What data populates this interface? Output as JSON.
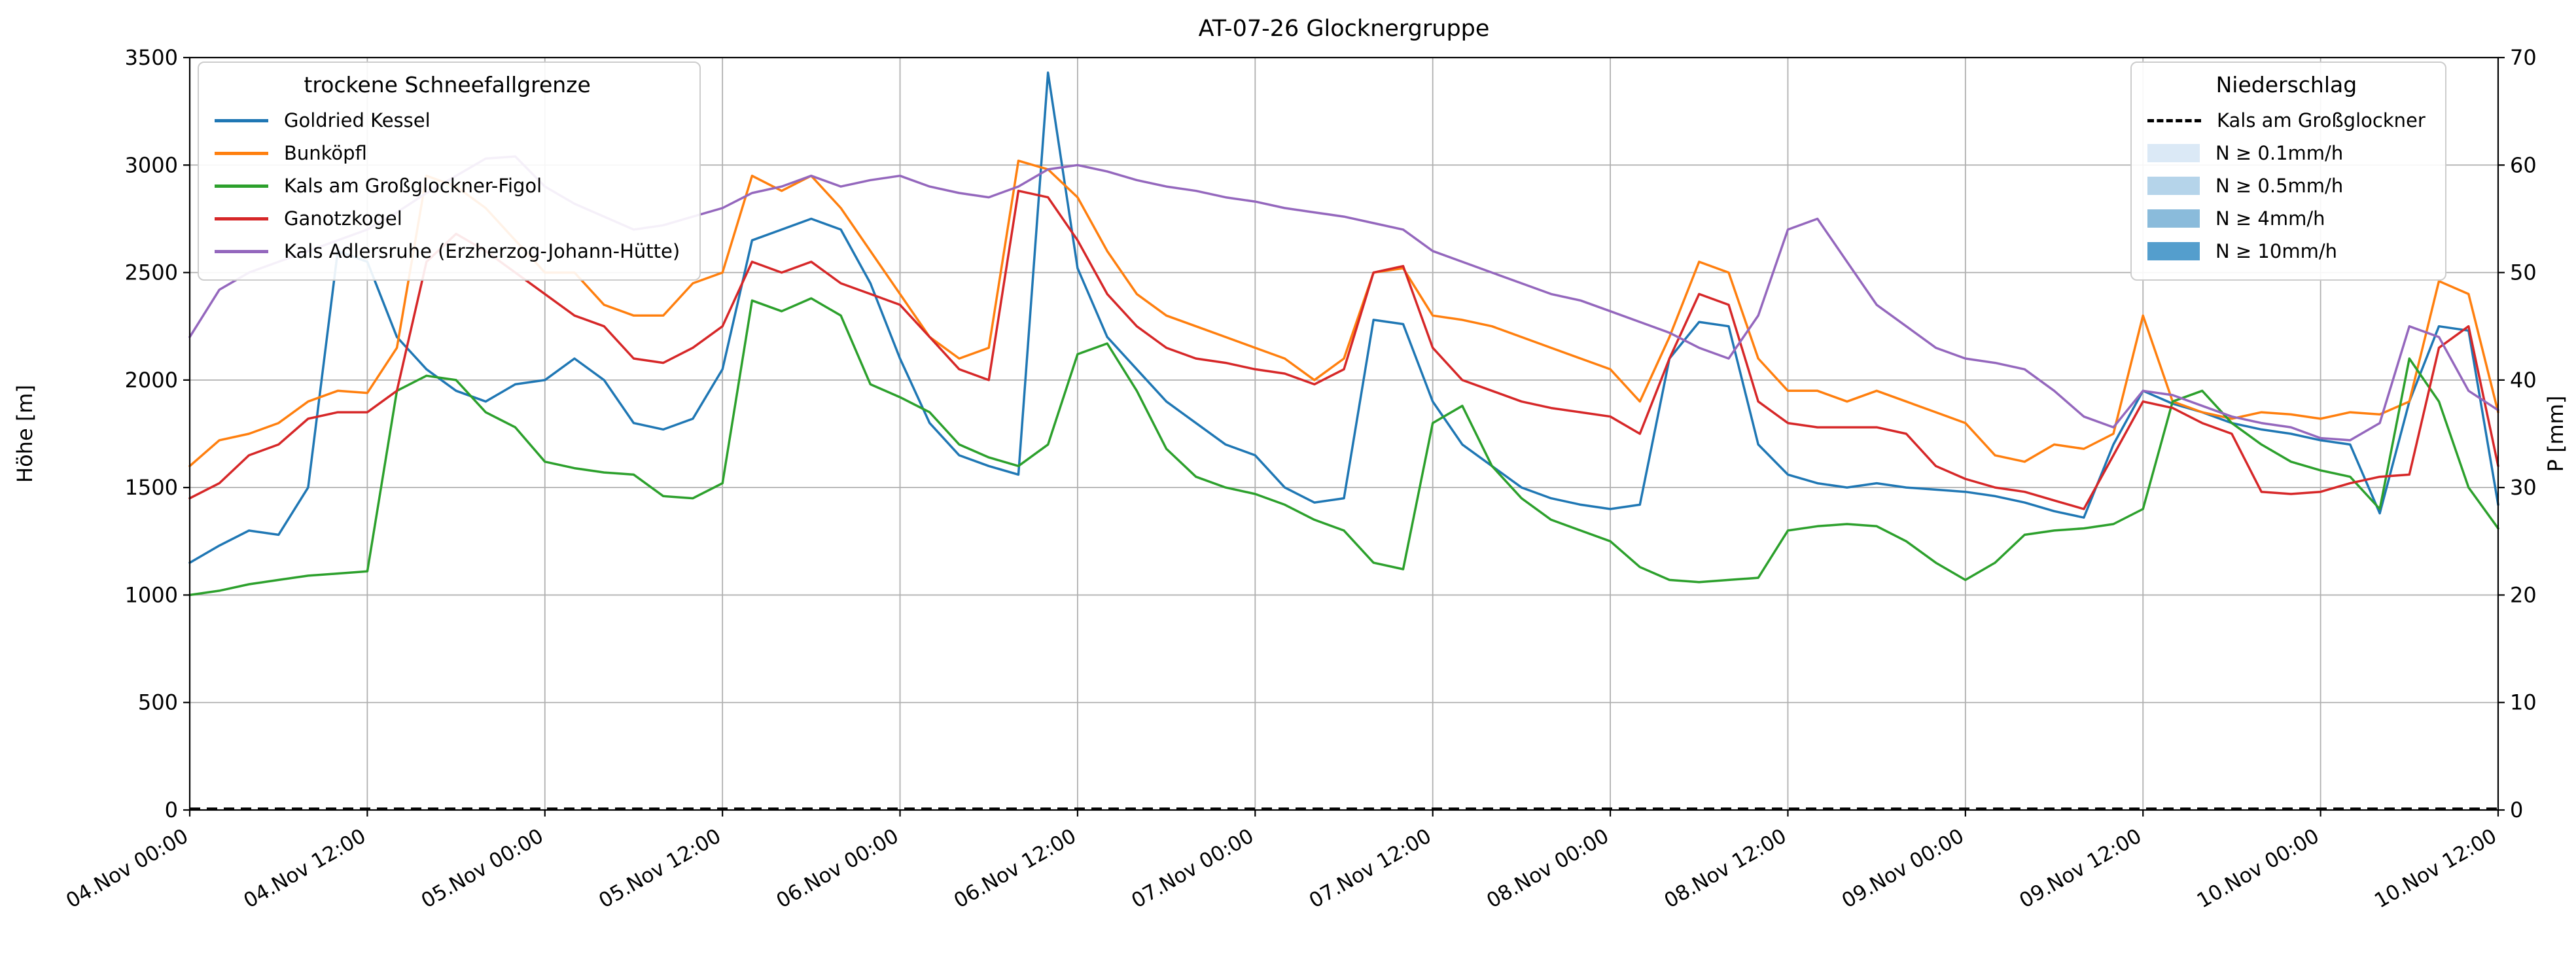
{
  "chart_data": {
    "type": "line",
    "title": "AT-07-26 Glocknergruppe",
    "ylabel_left": "Höhe [m]",
    "ylabel_right": "P [mm]",
    "ylim_left": [
      0,
      3500
    ],
    "ylim_right": [
      0,
      70
    ],
    "yticks_left": [
      0,
      500,
      1000,
      1500,
      2000,
      2500,
      3000,
      3500
    ],
    "yticks_right": [
      0,
      10,
      20,
      30,
      40,
      50,
      60,
      70
    ],
    "x_hours_range": [
      0,
      156
    ],
    "x_tick_hours": [
      0,
      12,
      24,
      36,
      48,
      60,
      72,
      84,
      96,
      108,
      120,
      132,
      144,
      156
    ],
    "x_tick_labels": [
      "04.Nov 00:00",
      "04.Nov 12:00",
      "05.Nov 00:00",
      "05.Nov 12:00",
      "06.Nov 00:00",
      "06.Nov 12:00",
      "07.Nov 00:00",
      "07.Nov 12:00",
      "08.Nov 00:00",
      "08.Nov 12:00",
      "09.Nov 00:00",
      "09.Nov 12:00",
      "10.Nov 00:00",
      "10.Nov 12:00"
    ],
    "sample_interval_hours": 2,
    "grid": true,
    "grid_color": "#b0b0b0",
    "legend_snow_title": "trockene Schneefallgrenze",
    "legend_precip_title": "Niederschlag",
    "series": [
      {
        "name": "Goldried Kessel",
        "color": "#1f77b4",
        "axis": "left",
        "values": [
          1150,
          1230,
          1300,
          1280,
          1500,
          2600,
          2550,
          2200,
          2050,
          1950,
          1900,
          1980,
          2000,
          2100,
          2000,
          1800,
          1770,
          1820,
          2050,
          2650,
          2700,
          2750,
          2700,
          2450,
          2100,
          1800,
          1650,
          1600,
          1560,
          3430,
          2520,
          2200,
          2050,
          1900,
          1800,
          1700,
          1650,
          1500,
          1430,
          1450,
          2280,
          2260,
          1900,
          1700,
          1600,
          1500,
          1450,
          1420,
          1400,
          1420,
          2100,
          2270,
          2250,
          1700,
          1560,
          1520,
          1500,
          1520,
          1500,
          1490,
          1480,
          1460,
          1430,
          1390,
          1360,
          1700,
          1950,
          1890,
          1850,
          1800,
          1770,
          1750,
          1720,
          1700,
          1380,
          1900,
          2250,
          2230,
          1420
        ]
      },
      {
        "name": "Bunköpfl",
        "color": "#ff7f0e",
        "axis": "left",
        "values": [
          1600,
          1720,
          1750,
          1800,
          1900,
          1950,
          1940,
          2150,
          2950,
          2900,
          2800,
          2650,
          2500,
          2500,
          2350,
          2300,
          2300,
          2450,
          2500,
          2950,
          2880,
          2950,
          2800,
          2600,
          2400,
          2200,
          2100,
          2150,
          3020,
          2980,
          2850,
          2600,
          2400,
          2300,
          2250,
          2200,
          2150,
          2100,
          2000,
          2100,
          2500,
          2520,
          2300,
          2280,
          2250,
          2200,
          2150,
          2100,
          2050,
          1900,
          2200,
          2550,
          2500,
          2100,
          1950,
          1950,
          1900,
          1950,
          1900,
          1850,
          1800,
          1650,
          1620,
          1700,
          1680,
          1750,
          2300,
          1900,
          1850,
          1820,
          1850,
          1840,
          1820,
          1850,
          1840,
          1900,
          2460,
          2400,
          1850
        ]
      },
      {
        "name": "Kals am Großglockner-Figol",
        "color": "#2ca02c",
        "axis": "left",
        "values": [
          1000,
          1020,
          1050,
          1070,
          1090,
          1100,
          1110,
          1950,
          2020,
          2000,
          1850,
          1780,
          1620,
          1590,
          1570,
          1560,
          1460,
          1450,
          1520,
          2370,
          2320,
          2380,
          2300,
          1980,
          1920,
          1850,
          1700,
          1640,
          1600,
          1700,
          2120,
          2170,
          1950,
          1680,
          1550,
          1500,
          1470,
          1420,
          1350,
          1300,
          1150,
          1120,
          1800,
          1880,
          1600,
          1450,
          1350,
          1300,
          1250,
          1130,
          1070,
          1060,
          1070,
          1080,
          1300,
          1320,
          1330,
          1320,
          1250,
          1150,
          1070,
          1150,
          1280,
          1300,
          1310,
          1330,
          1400,
          1900,
          1950,
          1800,
          1700,
          1620,
          1580,
          1550,
          1400,
          2100,
          1900,
          1500,
          1310
        ]
      },
      {
        "name": "Ganotzkogel",
        "color": "#d62728",
        "axis": "left",
        "values": [
          1450,
          1520,
          1650,
          1700,
          1820,
          1850,
          1850,
          1950,
          2550,
          2680,
          2600,
          2500,
          2400,
          2300,
          2250,
          2100,
          2080,
          2150,
          2250,
          2550,
          2500,
          2550,
          2450,
          2400,
          2350,
          2200,
          2050,
          2000,
          2880,
          2850,
          2650,
          2400,
          2250,
          2150,
          2100,
          2080,
          2050,
          2030,
          1980,
          2050,
          2500,
          2530,
          2150,
          2000,
          1950,
          1900,
          1870,
          1850,
          1830,
          1750,
          2100,
          2400,
          2350,
          1900,
          1800,
          1780,
          1780,
          1780,
          1750,
          1600,
          1540,
          1500,
          1480,
          1440,
          1400,
          1650,
          1900,
          1870,
          1800,
          1750,
          1480,
          1470,
          1480,
          1520,
          1550,
          1560,
          2150,
          2250,
          1600
        ]
      },
      {
        "name": "Kals Adlersruhe (Erzherzog-Johann-Hütte)",
        "color": "#9467bd",
        "axis": "left",
        "values": [
          2200,
          2420,
          2500,
          2550,
          2600,
          2650,
          2700,
          2780,
          2870,
          2950,
          3030,
          3040,
          2900,
          2820,
          2760,
          2700,
          2720,
          2760,
          2800,
          2870,
          2900,
          2950,
          2900,
          2930,
          2950,
          2900,
          2870,
          2850,
          2900,
          2980,
          3000,
          2970,
          2930,
          2900,
          2880,
          2850,
          2830,
          2800,
          2780,
          2760,
          2730,
          2700,
          2600,
          2550,
          2500,
          2450,
          2400,
          2370,
          2320,
          2270,
          2220,
          2150,
          2100,
          2300,
          2700,
          2750,
          2550,
          2350,
          2250,
          2150,
          2100,
          2080,
          2050,
          1950,
          1830,
          1780,
          1950,
          1930,
          1880,
          1830,
          1800,
          1780,
          1730,
          1720,
          1800,
          2250,
          2200,
          1950,
          1860
        ]
      }
    ],
    "precipitation_series": {
      "name": "Kals am Großglockner",
      "axis": "right",
      "color": "#000000",
      "line_style": "dashed",
      "constant_mm": 0
    },
    "precip_legend_entries": [
      {
        "label": "Kals am Großglockner",
        "type": "dashed-line",
        "color": "#000000"
      },
      {
        "label": "N ≥ 0.1mm/h",
        "type": "patch",
        "color": "#dbe9f6"
      },
      {
        "label": "N ≥ 0.5mm/h",
        "type": "patch",
        "color": "#b5d4ea"
      },
      {
        "label": "N ≥ 4mm/h",
        "type": "patch",
        "color": "#8abbdb"
      },
      {
        "label": "N ≥ 10mm/h",
        "type": "patch",
        "color": "#549ecd"
      }
    ]
  }
}
